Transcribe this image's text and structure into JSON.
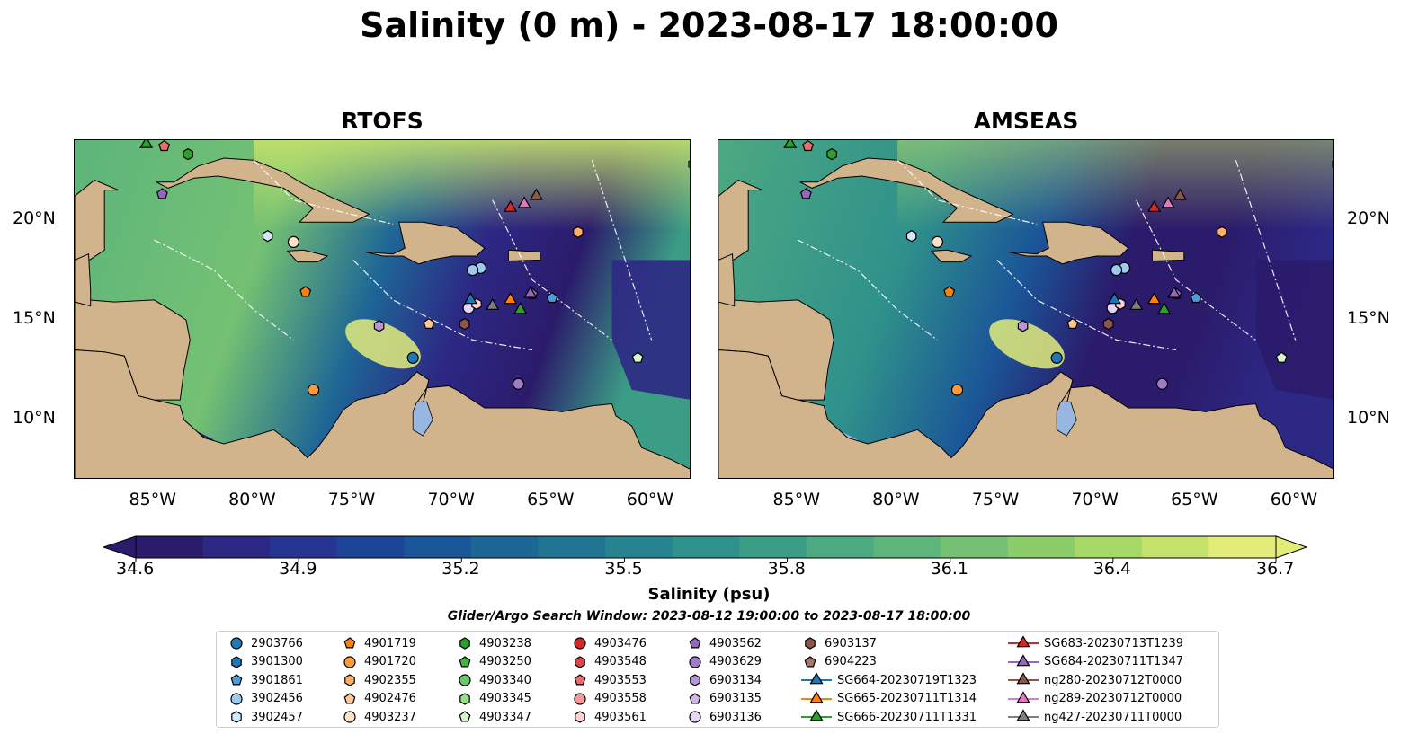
{
  "title": "Salinity (0 m) - 2023-08-17 18:00:00",
  "panels": [
    {
      "title": "RTOFS"
    },
    {
      "title": "AMSEAS"
    }
  ],
  "axes": {
    "x_ticks": [
      "85°W",
      "80°W",
      "75°W",
      "70°W",
      "65°W",
      "60°W"
    ],
    "y_ticks": [
      "20°N",
      "15°N",
      "10°N"
    ]
  },
  "colorbar": {
    "label": "Salinity (psu)",
    "ticks": [
      "34.6",
      "34.9",
      "35.2",
      "35.5",
      "35.8",
      "36.1",
      "36.4",
      "36.7"
    ],
    "colors": [
      "#2b1b6b",
      "#2d2884",
      "#263591",
      "#1d4596",
      "#1b5698",
      "#1e6696",
      "#217593",
      "#27838f",
      "#2f918b",
      "#3b9d86",
      "#4ca981",
      "#5db57b",
      "#74c173",
      "#8ccd6b",
      "#a6d868",
      "#c3e16c",
      "#e3ec7b"
    ]
  },
  "search_window": "Glider/Argo Search Window: 2023-08-12 19:00:00 to 2023-08-17 18:00:00",
  "legend": [
    {
      "label": "2903766",
      "shape": "circle",
      "color": "#1f77b4"
    },
    {
      "label": "3901300",
      "shape": "hexagon",
      "color": "#1f77b4"
    },
    {
      "label": "3901861",
      "shape": "pentagon",
      "color": "#4f9bd6"
    },
    {
      "label": "3902456",
      "shape": "circle",
      "color": "#9ec9ef"
    },
    {
      "label": "3902457",
      "shape": "hexagon",
      "color": "#d2e9fb"
    },
    {
      "label": "4901719",
      "shape": "pentagon",
      "color": "#ff7f0e"
    },
    {
      "label": "4901720",
      "shape": "circle",
      "color": "#ff9a3c"
    },
    {
      "label": "4902355",
      "shape": "hexagon",
      "color": "#ffb066"
    },
    {
      "label": "4902476",
      "shape": "pentagon",
      "color": "#ffc694"
    },
    {
      "label": "4903237",
      "shape": "circle",
      "color": "#ffe3c8"
    },
    {
      "label": "4903238",
      "shape": "hexagon",
      "color": "#2ca02c"
    },
    {
      "label": "4903250",
      "shape": "pentagon",
      "color": "#46b346"
    },
    {
      "label": "4903340",
      "shape": "circle",
      "color": "#6bc76b"
    },
    {
      "label": "4903345",
      "shape": "hexagon",
      "color": "#98df8a"
    },
    {
      "label": "4903347",
      "shape": "pentagon",
      "color": "#d6f5cc"
    },
    {
      "label": "4903476",
      "shape": "circle",
      "color": "#d62728"
    },
    {
      "label": "4903548",
      "shape": "hexagon",
      "color": "#e0454a"
    },
    {
      "label": "4903553",
      "shape": "pentagon",
      "color": "#ea6a6e"
    },
    {
      "label": "4903558",
      "shape": "circle",
      "color": "#f4999a"
    },
    {
      "label": "4903561",
      "shape": "hexagon",
      "color": "#fcd0d0"
    },
    {
      "label": "4903562",
      "shape": "pentagon",
      "color": "#9467bd"
    },
    {
      "label": "4903629",
      "shape": "circle",
      "color": "#a07cc8"
    },
    {
      "label": "6903134",
      "shape": "hexagon",
      "color": "#b795d6"
    },
    {
      "label": "6903135",
      "shape": "pentagon",
      "color": "#d0b5e8"
    },
    {
      "label": "6903136",
      "shape": "circle",
      "color": "#e8d5f7"
    },
    {
      "label": "6903137",
      "shape": "hexagon",
      "color": "#8c564b"
    },
    {
      "label": "6904223",
      "shape": "pentagon",
      "color": "#a9786c"
    },
    {
      "label": "SG664-20230719T1323",
      "shape": "triangle-line",
      "color": "#1f77b4"
    },
    {
      "label": "SG665-20230711T1314",
      "shape": "triangle-line",
      "color": "#ff7f0e"
    },
    {
      "label": "SG666-20230711T1331",
      "shape": "triangle-line",
      "color": "#2ca02c"
    },
    {
      "label": "SG683-20230713T1239",
      "shape": "triangle-line",
      "color": "#d62728"
    },
    {
      "label": "SG684-20230711T1347",
      "shape": "triangle-line",
      "color": "#9467bd"
    },
    {
      "label": "ng280-20230712T0000",
      "shape": "triangle-line",
      "color": "#8c564b"
    },
    {
      "label": "ng289-20230712T0000",
      "shape": "triangle-line",
      "color": "#e377c2"
    },
    {
      "label": "ng427-20230711T0000",
      "shape": "triangle-line",
      "color": "#7f7f7f"
    }
  ],
  "map": {
    "lon_range": [
      -89,
      -58
    ],
    "lat_range": [
      7,
      24
    ],
    "land_color": "#d2b48c",
    "outside_water_color": "#97b6e0"
  },
  "platforms": [
    {
      "lon": -72.0,
      "lat": 13.1,
      "legend": 0
    },
    {
      "lon": -68.6,
      "lat": 17.6,
      "legend": 3
    },
    {
      "lon": -69.0,
      "lat": 17.5,
      "legend": 3
    },
    {
      "lon": -65.0,
      "lat": 16.1,
      "legend": 2
    },
    {
      "lon": -77.4,
      "lat": 16.4,
      "legend": 5
    },
    {
      "lon": -77.0,
      "lat": 11.5,
      "legend": 6
    },
    {
      "lon": -63.7,
      "lat": 19.4,
      "legend": 7
    },
    {
      "lon": -79.3,
      "lat": 19.2,
      "legend": 4
    },
    {
      "lon": -78.0,
      "lat": 18.9,
      "legend": 9
    },
    {
      "lon": -71.2,
      "lat": 14.8,
      "legend": 8
    },
    {
      "lon": -83.3,
      "lat": 23.3,
      "legend": 10
    },
    {
      "lon": -57.9,
      "lat": 22.8,
      "legend": 13
    },
    {
      "lon": -60.7,
      "lat": 13.1,
      "legend": 14
    },
    {
      "lon": -84.5,
      "lat": 23.7,
      "legend": 17
    },
    {
      "lon": -69.2,
      "lat": 15.6,
      "legend": 24
    },
    {
      "lon": -68.8,
      "lat": 15.8,
      "legend": 19
    },
    {
      "lon": -84.6,
      "lat": 21.3,
      "legend": 20
    },
    {
      "lon": -66.7,
      "lat": 11.8,
      "legend": 21
    },
    {
      "lon": -73.7,
      "lat": 14.7,
      "legend": 22
    },
    {
      "lon": -69.4,
      "lat": 14.8,
      "legend": 25
    },
    {
      "lon": -66.0,
      "lat": 16.3,
      "legend": 20
    },
    {
      "lon": -69.1,
      "lat": 16.0,
      "legend": 27
    },
    {
      "lon": -67.1,
      "lat": 16.0,
      "legend": 28
    },
    {
      "lon": -66.6,
      "lat": 15.5,
      "legend": 29
    },
    {
      "lon": -67.1,
      "lat": 20.6,
      "legend": 30
    },
    {
      "lon": -66.1,
      "lat": 16.3,
      "legend": 31
    },
    {
      "lon": -68.0,
      "lat": 15.7,
      "legend": 34
    },
    {
      "lon": -66.4,
      "lat": 20.8,
      "legend": 33
    },
    {
      "lon": -65.8,
      "lat": 21.2,
      "legend": 32
    },
    {
      "lon": -85.4,
      "lat": 23.8,
      "legend": 29
    }
  ]
}
